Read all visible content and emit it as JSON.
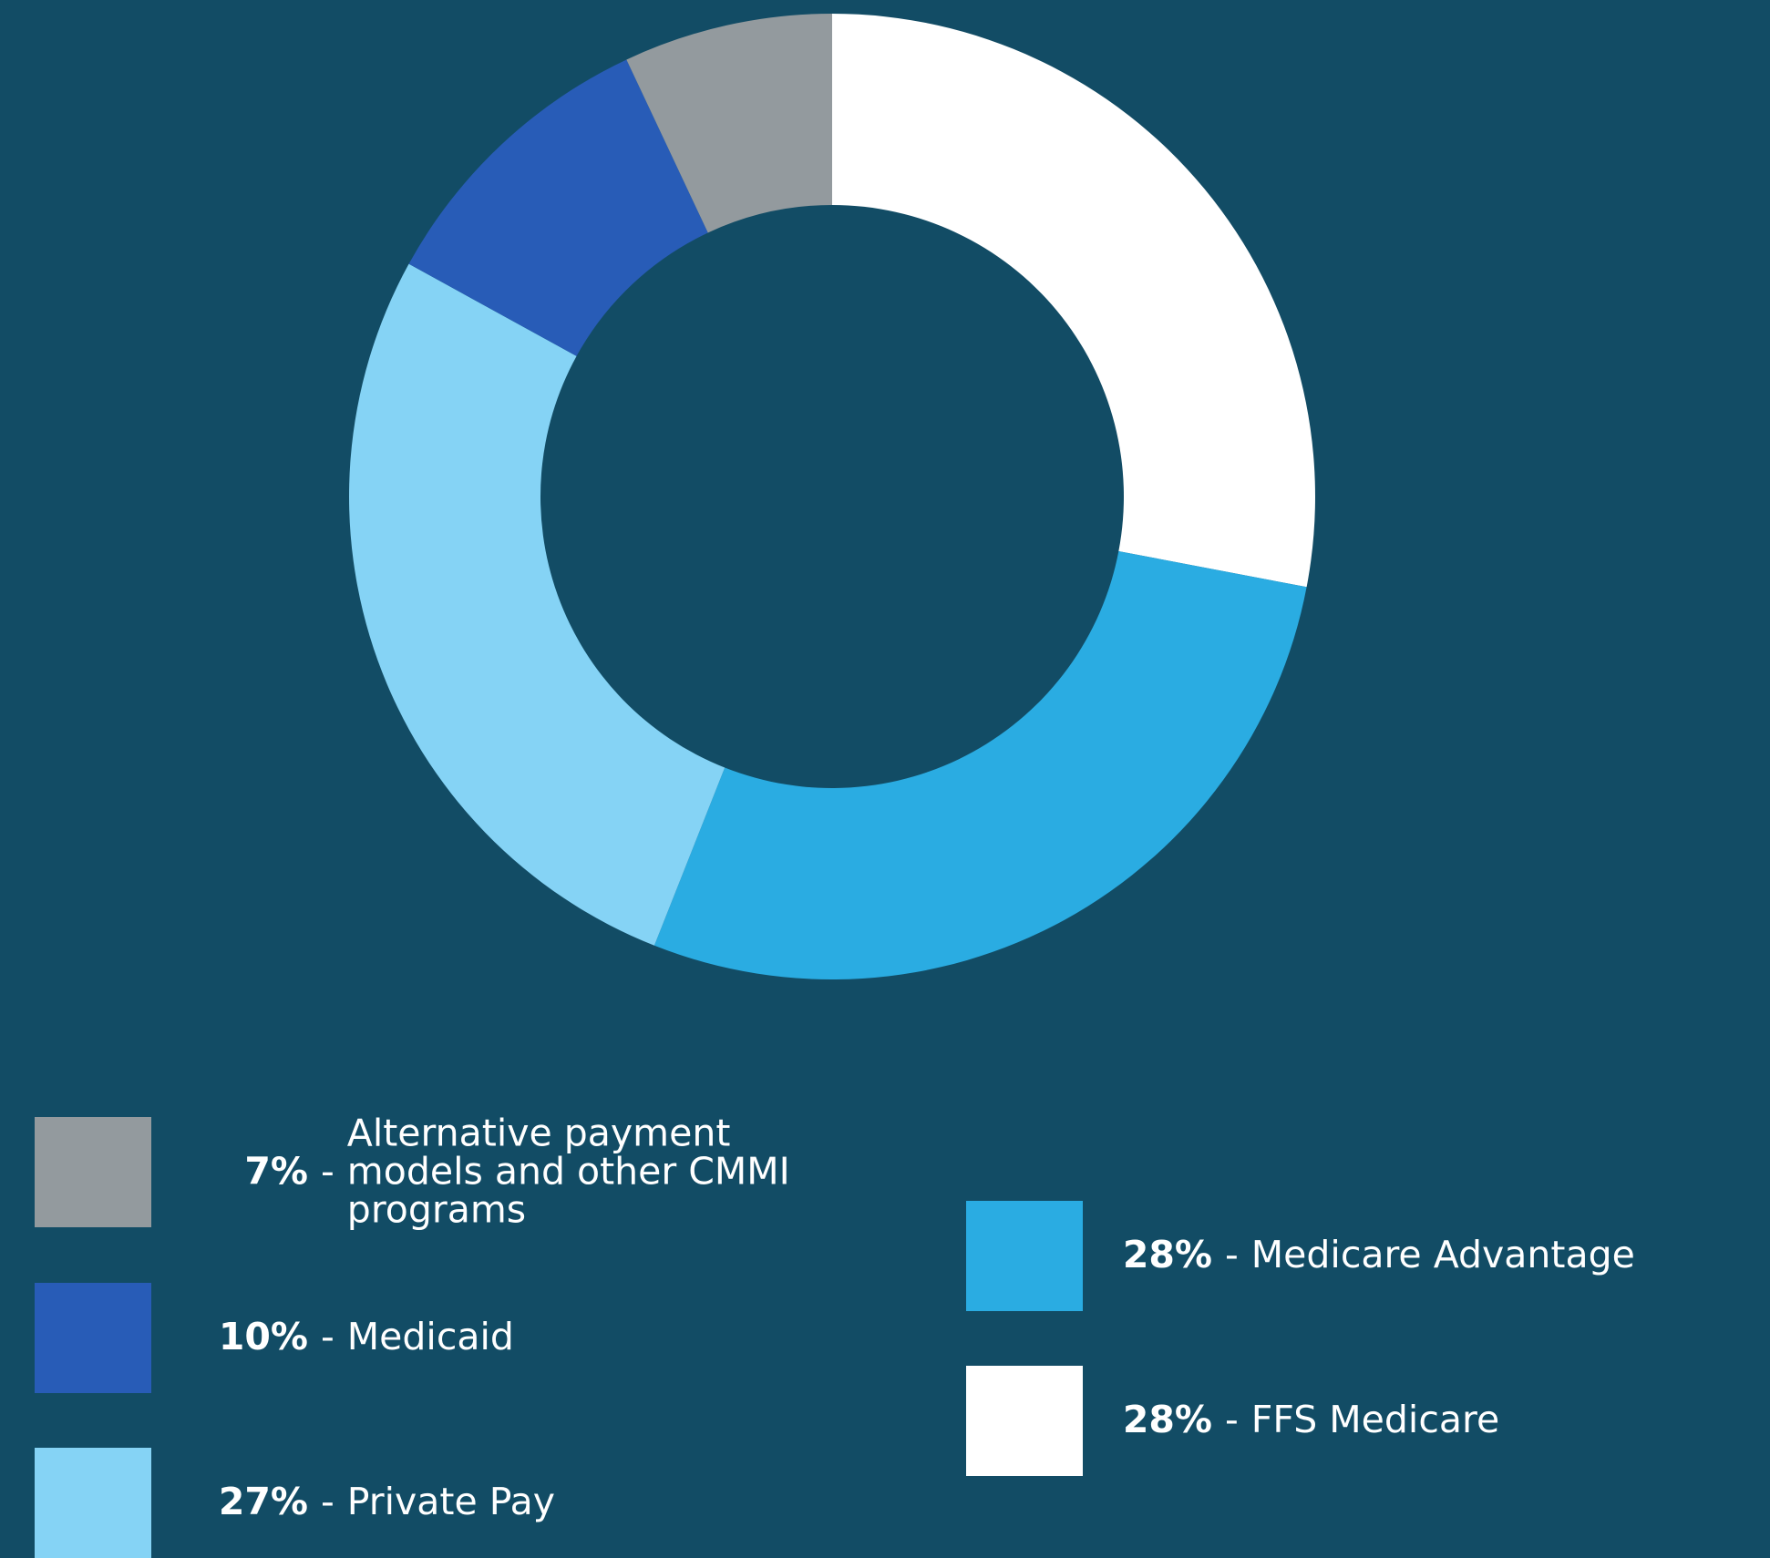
{
  "chart_data": {
    "type": "pie",
    "categories": [
      "FFS Medicare",
      "Medicare Advantage",
      "Private Pay",
      "Medicaid",
      "Alternative payment models and other CMMI programs"
    ],
    "values": [
      28,
      28,
      27,
      10,
      7
    ],
    "value_labels": [
      "28%",
      "28%",
      "27%",
      "10%",
      "7%"
    ],
    "colors": [
      "#ffffff",
      "#2aace2",
      "#85d3f5",
      "#285cb7",
      "#939a9e"
    ],
    "separator": "-"
  }
}
